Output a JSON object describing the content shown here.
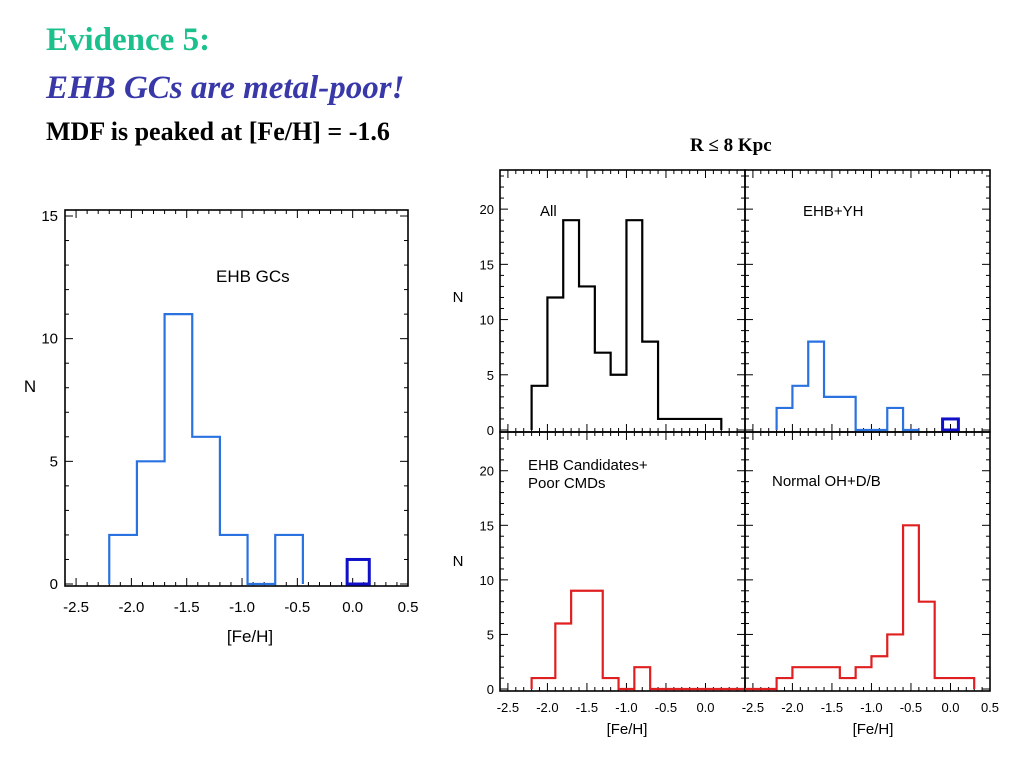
{
  "slide": {
    "title": "Evidence 5:",
    "subtitle": "EHB GCs are metal-poor!",
    "statement": "MDF is peaked at [Fe/H] = -1.6",
    "panel_group_label": "R ≤ 8 Kpc"
  },
  "colors": {
    "title": "#1cc08c",
    "subtitle": "#3838a8",
    "black": "#000000",
    "blue": "#2a72e0",
    "darkblue": "#1010c8",
    "red": "#e02020"
  },
  "chart_data": [
    {
      "type": "bar",
      "label": "EHB GCs",
      "xlabel": "[Fe/H]",
      "ylabel": "N",
      "xlim": [
        -2.6,
        0.5
      ],
      "ylim": [
        0,
        15
      ],
      "xticks": [
        -2.5,
        -2.0,
        -1.5,
        -1.0,
        -0.5,
        0.0,
        0.5
      ],
      "xtick_labels": [
        "-2.5",
        "-2.0",
        "-1.5",
        "-1.0",
        "-0.5",
        "0.0",
        "0.5"
      ],
      "yticks": [
        0,
        5,
        10,
        15
      ],
      "ytick_labels": [
        "0",
        "5",
        "10",
        "15"
      ],
      "bin_edges": [
        -2.2,
        -1.95,
        -1.7,
        -1.45,
        -1.2,
        -0.95,
        -0.7,
        -0.45
      ],
      "values": [
        2,
        5,
        11,
        6,
        2,
        0,
        2
      ],
      "extra_bin": {
        "edges": [
          -0.05,
          0.15
        ],
        "value": 1
      },
      "color": "#2a72e0",
      "extra_color": "#1010c8"
    },
    {
      "type": "bar",
      "label": "All",
      "ylabel": "N",
      "xlim": [
        -2.6,
        0.5
      ],
      "ylim": [
        0,
        23
      ],
      "yticks": [
        0,
        5,
        10,
        15,
        20
      ],
      "ytick_labels": [
        "0",
        "5",
        "10",
        "15",
        "20"
      ],
      "bin_edges": [
        -2.2,
        -2.0,
        -1.8,
        -1.6,
        -1.4,
        -1.2,
        -1.0,
        -0.8,
        -0.6,
        -0.4,
        -0.2,
        0.2
      ],
      "values": [
        4,
        12,
        19,
        13,
        7,
        5,
        19,
        8,
        1,
        1,
        1
      ],
      "color": "#000000"
    },
    {
      "type": "bar",
      "label": "EHB+YH",
      "xlim": [
        -2.6,
        0.5
      ],
      "ylim": [
        0,
        23
      ],
      "bin_edges": [
        -2.2,
        -2.0,
        -1.8,
        -1.6,
        -1.4,
        -1.2,
        -1.0,
        -0.8,
        -0.6,
        -0.4
      ],
      "values": [
        2,
        4,
        8,
        3,
        3,
        0,
        0,
        2,
        0
      ],
      "extra_bin": {
        "edges": [
          -0.1,
          0.1
        ],
        "value": 1
      },
      "color": "#2a72e0",
      "extra_color": "#1010c8"
    },
    {
      "type": "bar",
      "label": "EHB Candidates+\nPoor CMDs",
      "xlabel": "[Fe/H]",
      "ylabel": "N",
      "xlim": [
        -2.6,
        0.5
      ],
      "ylim": [
        0,
        23
      ],
      "xticks": [
        -2.5,
        -2.0,
        -1.5,
        -1.0,
        -0.5,
        0.0
      ],
      "xtick_labels": [
        "-2.5",
        "-2.0",
        "-1.5",
        "-1.0",
        "-0.5",
        "0.0"
      ],
      "yticks": [
        0,
        5,
        10,
        15,
        20
      ],
      "ytick_labels": [
        "0",
        "5",
        "10",
        "15",
        "20"
      ],
      "bin_edges": [
        -2.2,
        -1.9,
        -1.7,
        -1.5,
        -1.3,
        -1.1,
        -0.9,
        -0.7,
        -0.5,
        0.5
      ],
      "values": [
        1,
        6,
        9,
        9,
        1,
        0,
        2,
        0,
        0
      ],
      "color": "#e02020"
    },
    {
      "type": "bar",
      "label": "Normal OH+D/B",
      "xlabel": "[Fe/H]",
      "xlim": [
        -2.6,
        0.5
      ],
      "ylim": [
        0,
        23
      ],
      "xticks": [
        -2.5,
        -2.0,
        -1.5,
        -1.0,
        -0.5,
        0.0,
        0.5
      ],
      "xtick_labels": [
        "-2.5",
        "-2.0",
        "-1.5",
        "-1.0",
        "-0.5",
        "0.0",
        "0.5"
      ],
      "bin_edges": [
        -2.6,
        -2.2,
        -2.0,
        -1.8,
        -1.6,
        -1.4,
        -1.2,
        -1.0,
        -0.8,
        -0.6,
        -0.4,
        -0.2,
        0.3
      ],
      "values": [
        0,
        1,
        2,
        2,
        2,
        1,
        2,
        3,
        5,
        15,
        8,
        1
      ],
      "color": "#e02020"
    }
  ]
}
